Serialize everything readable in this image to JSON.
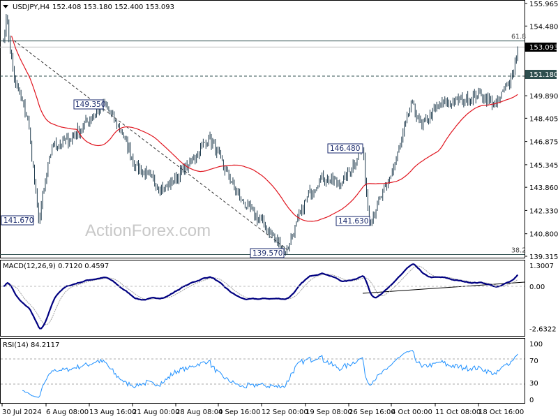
{
  "header": {
    "symbol": "USDJPY,H4",
    "ohlc": "152.408 153.180 152.400 153.093",
    "menu_icon": "triangle-down-icon"
  },
  "watermark": "ActionForex.com",
  "price_axis": {
    "ticks": [
      "155.965",
      "154.480",
      "149.890",
      "148.405",
      "146.875",
      "145.345",
      "143.860",
      "142.330",
      "140.800",
      "139.315"
    ],
    "tick_values": [
      155.965,
      154.48,
      149.89,
      148.405,
      146.875,
      145.345,
      143.86,
      142.33,
      140.8,
      139.315
    ],
    "current_price": "153.093",
    "level_price": "151.180"
  },
  "fib_levels": [
    {
      "label": "61.8",
      "value": 153.5
    },
    {
      "label": "38.2",
      "value": 139.43
    }
  ],
  "swing_labels": [
    {
      "text": "149.350",
      "value": 149.35
    },
    {
      "text": "141.670",
      "value": 141.67
    },
    {
      "text": "139.570",
      "value": 139.57
    },
    {
      "text": "146.480",
      "value": 146.48
    },
    {
      "text": "141.630",
      "value": 141.63
    }
  ],
  "time_axis": {
    "ticks": [
      "30 Jul 2024",
      "6 Aug 08:00",
      "13 Aug 16:00",
      "21 Aug 00:00",
      "28 Aug 08:00",
      "4 Sep 16:00",
      "12 Sep 00:00",
      "19 Sep 08:00",
      "26 Sep 16:00",
      "4 Oct 00:00",
      "11 Oct 08:00",
      "18 Oct 16:00"
    ]
  },
  "macd": {
    "label": "MACD(12,26,9) 0.7120 0.4597",
    "ticks": [
      "1.3007",
      "0.00",
      "-2.6322"
    ],
    "tick_values": [
      1.3007,
      0,
      -2.6322
    ]
  },
  "rsi": {
    "label": "RSI(14) 84.2117",
    "ticks": [
      "100",
      "70",
      "30",
      "0"
    ],
    "tick_values": [
      100,
      70,
      30,
      0
    ]
  },
  "colors": {
    "bars": "#1f3b4d",
    "moving_average": "#e0141e",
    "macd_main": "#000080",
    "macd_signal": "#a0a0a0",
    "rsi": "#1e90ff",
    "label_box": "#1a2a6c"
  },
  "chart_data": {
    "type": "ohlc",
    "symbol": "USDJPY",
    "timeframe": "H4",
    "ylim": [
      139.315,
      155.965
    ],
    "overlay": "moving average (red)",
    "swings": [
      [
        "2024-07-30 00:00",
        153.6
      ],
      [
        "2024-07-30 08:00",
        155.2
      ],
      [
        "2024-07-31 08:00",
        151.0
      ],
      [
        "2024-08-02 00:00",
        148.4
      ],
      [
        "2024-08-05 08:00",
        141.67
      ],
      [
        "2024-08-07 00:00",
        146.6
      ],
      [
        "2024-08-09 04:00",
        147.0
      ],
      [
        "2024-08-12 20:00",
        147.9
      ],
      [
        "2024-08-15 12:00",
        149.35
      ],
      [
        "2024-08-19 16:00",
        147.4
      ],
      [
        "2024-08-21 08:00",
        145.3
      ],
      [
        "2024-08-26 20:00",
        143.7
      ],
      [
        "2024-08-29 20:00",
        145.3
      ],
      [
        "2024-09-03 08:00",
        147.2
      ],
      [
        "2024-09-09 08:00",
        143.0
      ],
      [
        "2024-09-12 08:00",
        141.3
      ],
      [
        "2024-09-16 20:00",
        139.57
      ],
      [
        "2024-09-19 12:00",
        143.2
      ],
      [
        "2024-09-23 04:00",
        144.5
      ],
      [
        "2024-09-25 20:00",
        144.1
      ],
      [
        "2024-09-30 08:00",
        146.48
      ],
      [
        "2024-10-01 04:00",
        141.63
      ],
      [
        "2024-10-03 08:00",
        143.9
      ],
      [
        "2024-10-07 00:00",
        146.6
      ],
      [
        "2024-10-08 08:00",
        149.4
      ],
      [
        "2024-10-09 16:00",
        147.9
      ],
      [
        "2024-10-11 20:00",
        149.3
      ],
      [
        "2024-10-16 20:00",
        149.6
      ],
      [
        "2024-10-21 00:00",
        150.0
      ],
      [
        "2024-10-22 20:00",
        149.2
      ],
      [
        "2024-10-24 00:00",
        150.5
      ],
      [
        "2024-10-24 20:00",
        151.3
      ],
      [
        "2024-10-25 12:00",
        153.093
      ]
    ]
  }
}
